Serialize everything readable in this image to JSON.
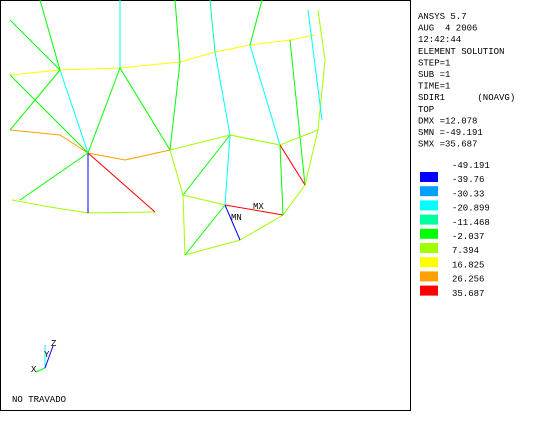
{
  "header": {
    "lines": [
      "ANSYS 5.7",
      "AUG  4 2006",
      "12:42:44",
      "ELEMENT SOLUTION",
      "STEP=1",
      "SUB =1",
      "TIME=1",
      "SDIR1      (NOAVG)",
      "TOP",
      "DMX =12.078",
      "SMN =-49.191",
      "SMX =35.687"
    ]
  },
  "legend": {
    "levels": [
      "-49.191",
      "-39.76",
      "-30.33",
      "-20.899",
      "-11.468",
      "-2.037",
      "7.394",
      "16.825",
      "26.256",
      "35.687"
    ],
    "colors": [
      "#0000ff",
      "#00a0ff",
      "#00ffff",
      "#00ffa0",
      "#00ff00",
      "#a0ff00",
      "#ffff00",
      "#ffa000",
      "#ff0000"
    ]
  },
  "plot": {
    "min_label": "MN",
    "max_label": "MX",
    "axes": [
      "Y",
      "Z",
      "X"
    ],
    "footer": "NO TRAVADO"
  }
}
